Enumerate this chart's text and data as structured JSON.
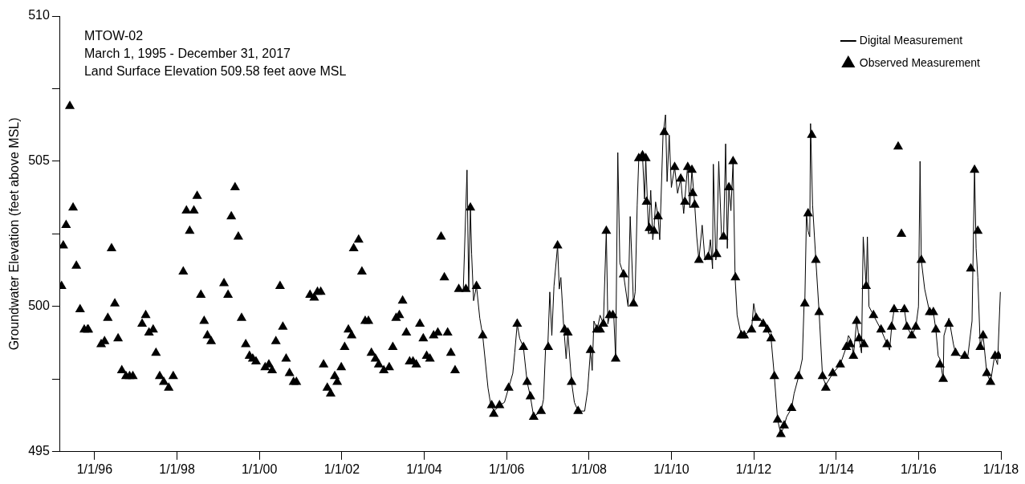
{
  "chart_data": {
    "type": "line",
    "title": "MTOW-02",
    "subtitle": "March 1, 1995 - December 31, 2017",
    "annotations": [
      "Land Surface Elevation 509.58 feet aove MSL"
    ],
    "ylabel": "Groundwater Elevation (feet above MSL)",
    "xlim": [
      "1995-03-01",
      "2018-01-01"
    ],
    "xticks": [
      {
        "value": "1996-01-01",
        "label": "1/1/96"
      },
      {
        "value": "1998-01-01",
        "label": "1/1/98"
      },
      {
        "value": "2000-01-01",
        "label": "1/1/00"
      },
      {
        "value": "2002-01-01",
        "label": "1/1/02"
      },
      {
        "value": "2004-01-01",
        "label": "1/1/04"
      },
      {
        "value": "2006-01-01",
        "label": "1/1/06"
      },
      {
        "value": "2008-01-01",
        "label": "1/1/08"
      },
      {
        "value": "2010-01-01",
        "label": "1/1/10"
      },
      {
        "value": "2012-01-01",
        "label": "1/1/12"
      },
      {
        "value": "2014-01-01",
        "label": "1/1/14"
      },
      {
        "value": "2016-01-01",
        "label": "1/1/16"
      },
      {
        "value": "2018-01-01",
        "label": "1/1/18"
      }
    ],
    "ylim": [
      495,
      510
    ],
    "yticks": [
      495,
      {
        "value": 497.5,
        "label": null
      },
      500,
      {
        "value": 502.5,
        "label": null
      },
      505,
      {
        "value": 507.5,
        "label": null
      },
      510
    ],
    "grid": false,
    "legend": "top right",
    "series": [
      {
        "name": "Digital Measurement",
        "color": "#000000",
        "marker": "none",
        "line_style": "solid",
        "x": [
          "2004-12-13",
          "2005-01-15",
          "2005-01-30",
          "2005-02-14",
          "2005-02-25",
          "2005-03-14",
          "2005-04-09",
          "2005-05-08",
          "2005-06-03",
          "2005-07-20",
          "2005-08-14",
          "2005-09-13",
          "2005-10-30",
          "2005-12-13",
          "2006-01-19",
          "2006-02-25",
          "2006-03-14",
          "2006-04-05",
          "2006-04-27",
          "2006-05-30",
          "2006-07-02",
          "2006-07-31",
          "2006-08-29",
          "2006-11-03",
          "2006-11-24",
          "2006-12-13",
          "2007-01-01",
          "2007-01-19",
          "2007-02-06",
          "2007-02-25",
          "2007-03-29",
          "2007-04-13",
          "2007-04-27",
          "2007-05-19",
          "2007-06-13",
          "2007-06-28",
          "2007-07-31",
          "2007-08-25",
          "2007-09-27",
          "2007-11-24",
          "2007-12-20",
          "2008-01-15",
          "2008-01-30",
          "2008-02-14",
          "2008-03-14",
          "2008-04-09",
          "2008-05-08",
          "2008-06-03",
          "2008-06-17",
          "2008-07-02",
          "2008-08-07",
          "2008-08-25",
          "2008-09-13",
          "2008-10-01",
          "2008-11-03",
          "2008-12-13",
          "2009-01-01",
          "2009-01-30",
          "2009-02-14",
          "2009-03-04",
          "2009-03-18",
          "2009-04-20",
          "2009-05-08",
          "2009-05-19",
          "2009-06-13",
          "2009-07-02",
          "2009-07-20",
          "2009-07-31",
          "2009-08-14",
          "2009-09-05",
          "2009-09-20",
          "2009-10-19",
          "2009-11-10",
          "2009-11-24",
          "2009-12-13",
          "2010-01-01",
          "2010-01-30",
          "2010-02-25",
          "2010-03-25",
          "2010-04-20",
          "2010-05-26",
          "2010-06-13",
          "2010-07-02",
          "2010-07-27",
          "2010-08-14",
          "2010-09-02",
          "2010-10-01",
          "2010-10-26",
          "2010-11-24",
          "2010-12-13",
          "2011-01-01",
          "2011-01-08",
          "2011-01-30",
          "2011-02-06",
          "2011-02-25",
          "2011-03-22",
          "2011-04-09",
          "2011-04-27",
          "2011-05-12",
          "2011-05-26",
          "2011-06-13",
          "2011-07-02",
          "2011-07-20",
          "2011-08-07",
          "2011-09-13",
          "2011-10-08",
          "2011-12-13",
          "2012-01-01",
          "2012-01-23",
          "2012-02-25",
          "2012-03-25",
          "2012-05-01",
          "2012-06-03",
          "2012-07-02",
          "2012-07-31",
          "2012-08-29",
          "2012-09-27",
          "2012-10-19",
          "2012-12-02",
          "2012-12-24",
          "2013-02-03",
          "2013-03-07",
          "2013-03-22",
          "2013-03-29",
          "2013-04-13",
          "2013-04-27",
          "2013-05-12",
          "2013-05-19",
          "2013-06-06",
          "2013-07-05",
          "2013-08-03",
          "2013-09-02",
          "2013-10-01",
          "2013-12-02",
          "2014-02-06",
          "2014-04-01",
          "2014-04-20",
          "2014-05-19",
          "2014-06-03",
          "2014-07-02",
          "2014-07-23",
          "2014-08-14",
          "2014-08-29",
          "2014-09-24",
          "2014-10-05",
          "2014-10-19",
          "2014-11-28",
          "2015-02-03",
          "2015-03-29",
          "2015-04-20",
          "2015-05-08",
          "2015-05-30",
          "2015-07-20",
          "2015-08-29",
          "2015-09-20",
          "2015-11-03",
          "2015-12-09",
          "2016-01-01",
          "2016-01-15",
          "2016-01-26",
          "2016-02-25",
          "2016-04-09",
          "2016-05-12",
          "2016-06-03",
          "2016-06-24",
          "2016-07-09",
          "2016-08-07",
          "2016-08-14",
          "2016-09-27",
          "2016-11-06",
          "2016-11-24",
          "2017-01-01",
          "2017-03-14",
          "2017-04-20",
          "2017-05-12",
          "2017-05-26",
          "2017-06-10",
          "2017-07-02",
          "2017-07-27",
          "2017-08-29",
          "2017-10-01",
          "2017-11-06",
          "2017-12-02",
          "2017-12-27"
        ],
        "values": [
          500.6,
          504.7,
          500.6,
          503.4,
          501.8,
          500.2,
          500.7,
          499.6,
          499.0,
          497.2,
          496.6,
          496.4,
          496.6,
          496.7,
          497.2,
          497.7,
          498.4,
          499.4,
          498.9,
          498.6,
          497.4,
          496.9,
          496.2,
          496.4,
          496.8,
          498.6,
          498.6,
          500.5,
          499.0,
          500.7,
          502.1,
          500.6,
          501.0,
          499.5,
          498.2,
          499.1,
          497.4,
          496.7,
          496.4,
          496.4,
          497.1,
          498.5,
          497.8,
          499.5,
          499.2,
          499.7,
          499.4,
          502.6,
          499.4,
          499.7,
          499.8,
          498.2,
          505.3,
          501.5,
          501.1,
          500.0,
          503.1,
          500.1,
          500.5,
          503.5,
          505.1,
          505.2,
          503.7,
          505.1,
          502.5,
          504.0,
          502.3,
          502.7,
          503.6,
          503.1,
          502.3,
          505.9,
          506.6,
          504.3,
          505.9,
          504.1,
          504.8,
          503.9,
          504.4,
          503.2,
          504.9,
          503.4,
          504.7,
          503.5,
          502.4,
          501.6,
          502.8,
          501.6,
          501.7,
          502.3,
          501.3,
          504.9,
          501.6,
          501.8,
          505.0,
          502.4,
          502.4,
          505.6,
          502.0,
          504.1,
          503.3,
          505.0,
          501.0,
          499.7,
          499.0,
          499.0,
          499.2,
          500.1,
          499.6,
          499.6,
          499.4,
          499.2,
          498.9,
          497.6,
          496.1,
          495.6,
          495.9,
          496.2,
          496.5,
          497.0,
          497.6,
          498.2,
          500.0,
          500.1,
          503.2,
          502.6,
          502.4,
          506.3,
          503.5,
          501.6,
          499.8,
          497.6,
          497.3,
          497.7,
          498.0,
          498.6,
          499.0,
          498.8,
          498.3,
          499.5,
          498.9,
          498.4,
          502.4,
          500.7,
          502.4,
          500.0,
          499.7,
          499.2,
          498.7,
          498.5,
          499.3,
          499.9,
          499.9,
          499.9,
          499.3,
          499.0,
          499.3,
          500.0,
          505.0,
          501.6,
          500.6,
          499.8,
          499.8,
          499.2,
          498.3,
          498.2,
          497.5,
          499.0,
          499.6,
          498.7,
          498.4,
          498.3,
          498.3,
          499.5,
          504.8,
          502.0,
          501.0,
          498.6,
          499.0,
          497.7,
          497.4,
          498.3,
          498.0,
          500.5
        ]
      },
      {
        "name": "Observed Measurement",
        "type": "scatter",
        "color": "#000000",
        "marker": "triangle",
        "x": [
          "1995-03-14",
          "1995-03-29",
          "1995-04-23",
          "1995-05-26",
          "1995-06-24",
          "1995-07-23",
          "1995-08-25",
          "1995-10-01",
          "1995-10-30",
          "1995-11-06",
          "1996-02-28",
          "1996-03-29",
          "1996-04-27",
          "1996-05-30",
          "1996-06-28",
          "1996-07-27",
          "1996-08-29",
          "1996-10-05",
          "1996-11-06",
          "1996-12-05",
          "1997-02-25",
          "1997-03-29",
          "1997-04-27",
          "1997-06-03",
          "1997-06-28",
          "1997-07-31",
          "1997-09-05",
          "1997-10-19",
          "1997-11-28",
          "1998-02-25",
          "1998-03-25",
          "1998-04-23",
          "1998-05-30",
          "1998-06-28",
          "1998-07-31",
          "1998-08-29",
          "1998-09-27",
          "1998-10-30",
          "1999-02-21",
          "1999-03-29",
          "1999-04-27",
          "1999-05-30",
          "1999-06-28",
          "1999-07-27",
          "1999-09-02",
          "1999-10-05",
          "1999-11-03",
          "1999-12-02",
          "2000-02-21",
          "2000-03-25",
          "2000-04-23",
          "2000-05-26",
          "2000-07-02",
          "2000-07-27",
          "2000-08-25",
          "2000-09-24",
          "2000-10-30",
          "2000-11-24",
          "2001-03-25",
          "2001-05-01",
          "2001-05-30",
          "2001-06-28",
          "2001-07-23",
          "2001-08-25",
          "2001-09-24",
          "2001-10-30",
          "2001-11-21",
          "2001-12-27",
          "2002-01-26",
          "2002-02-28",
          "2002-03-29",
          "2002-04-16",
          "2002-05-30",
          "2002-06-28",
          "2002-07-27",
          "2002-08-25",
          "2002-09-20",
          "2002-10-26",
          "2002-11-24",
          "2003-01-08",
          "2003-02-25",
          "2003-03-29",
          "2003-04-27",
          "2003-05-26",
          "2003-06-24",
          "2003-07-27",
          "2003-08-25",
          "2003-09-24",
          "2003-10-23",
          "2003-11-24",
          "2003-12-24",
          "2004-01-23",
          "2004-02-21",
          "2004-03-25",
          "2004-05-01",
          "2004-05-30",
          "2004-06-28",
          "2004-07-27",
          "2004-08-25",
          "2004-10-01",
          "2004-11-03",
          "2005-01-05",
          "2005-02-14",
          "2005-04-09",
          "2005-06-03",
          "2005-08-22",
          "2005-09-09",
          "2005-10-30",
          "2006-01-19",
          "2006-04-05",
          "2006-05-30",
          "2006-07-02",
          "2006-07-31",
          "2006-08-29",
          "2006-11-03",
          "2007-01-05",
          "2007-03-29",
          "2007-05-30",
          "2007-06-28",
          "2007-07-31",
          "2007-09-27",
          "2008-01-15",
          "2008-03-11",
          "2008-04-09",
          "2008-05-08",
          "2008-06-03",
          "2008-07-02",
          "2008-07-31",
          "2008-08-25",
          "2008-11-03",
          "2009-01-30",
          "2009-03-18",
          "2009-04-20",
          "2009-05-19",
          "2009-05-26",
          "2009-06-20",
          "2009-07-31",
          "2009-09-05",
          "2009-10-30",
          "2010-01-30",
          "2010-03-25",
          "2010-05-01",
          "2010-05-26",
          "2010-07-02",
          "2010-07-09",
          "2010-07-27",
          "2010-09-02",
          "2010-11-24",
          "2011-02-06",
          "2011-04-09",
          "2011-05-26",
          "2011-07-02",
          "2011-07-23",
          "2011-09-13",
          "2011-10-08",
          "2011-12-13",
          "2012-01-23",
          "2012-03-25",
          "2012-05-01",
          "2012-06-03",
          "2012-07-02",
          "2012-07-31",
          "2012-08-29",
          "2012-09-27",
          "2012-12-02",
          "2013-02-03",
          "2013-03-29",
          "2013-04-27",
          "2013-05-30",
          "2013-07-05",
          "2013-08-03",
          "2013-09-02",
          "2013-10-01",
          "2013-12-02",
          "2014-02-06",
          "2014-04-01",
          "2014-05-05",
          "2014-06-03",
          "2014-07-02",
          "2014-07-23",
          "2014-09-05",
          "2014-09-24",
          "2014-11-28",
          "2015-02-03",
          "2015-03-29",
          "2015-05-08",
          "2015-05-30",
          "2015-07-05",
          "2015-08-03",
          "2015-08-29",
          "2015-09-20",
          "2015-11-03",
          "2015-12-09",
          "2016-01-26",
          "2016-04-09",
          "2016-05-12",
          "2016-06-03",
          "2016-07-09",
          "2016-08-07",
          "2016-09-27",
          "2016-11-24",
          "2017-02-14",
          "2017-04-09",
          "2017-05-12",
          "2017-06-10",
          "2017-07-02",
          "2017-07-27",
          "2017-08-29",
          "2017-10-01",
          "2017-11-10",
          "2017-12-09"
        ],
        "values": [
          500.7,
          502.1,
          502.8,
          506.9,
          503.4,
          501.4,
          499.9,
          499.2,
          499.2,
          499.2,
          498.7,
          498.8,
          499.6,
          502.0,
          500.1,
          498.9,
          497.8,
          497.6,
          497.6,
          497.6,
          499.4,
          499.7,
          499.1,
          499.2,
          498.4,
          497.6,
          497.4,
          497.2,
          497.6,
          501.2,
          503.3,
          502.6,
          503.3,
          503.8,
          500.4,
          499.5,
          499.0,
          498.8,
          500.8,
          500.4,
          503.1,
          504.1,
          502.4,
          499.6,
          498.7,
          498.3,
          498.2,
          498.1,
          497.9,
          498.0,
          497.8,
          498.8,
          500.7,
          499.3,
          498.2,
          497.7,
          497.4,
          497.4,
          500.4,
          500.3,
          500.5,
          500.5,
          498.0,
          497.2,
          497.0,
          497.6,
          497.4,
          497.9,
          498.6,
          499.2,
          499.0,
          502.0,
          502.3,
          501.2,
          499.5,
          499.5,
          498.4,
          498.2,
          498.0,
          497.8,
          497.9,
          498.6,
          499.6,
          499.7,
          500.2,
          499.1,
          498.1,
          498.1,
          498.0,
          499.4,
          498.9,
          498.3,
          498.2,
          499.0,
          499.1,
          502.4,
          501.0,
          499.1,
          498.4,
          497.8,
          500.6,
          500.6,
          503.4,
          500.7,
          499.0,
          496.6,
          496.3,
          496.6,
          497.2,
          499.4,
          498.6,
          497.4,
          496.9,
          496.2,
          496.4,
          498.6,
          502.1,
          499.2,
          499.1,
          497.4,
          496.4,
          498.5,
          499.2,
          499.2,
          499.4,
          502.6,
          499.7,
          499.7,
          498.2,
          501.1,
          500.1,
          505.1,
          505.2,
          505.1,
          503.6,
          502.7,
          502.6,
          503.1,
          506.0,
          504.8,
          504.4,
          503.6,
          504.8,
          504.7,
          503.9,
          503.5,
          501.6,
          501.7,
          501.8,
          502.4,
          504.1,
          505.0,
          501.0,
          499.0,
          499.0,
          499.2,
          499.6,
          499.4,
          499.2,
          498.9,
          497.6,
          496.1,
          495.6,
          495.9,
          496.5,
          497.6,
          500.1,
          503.2,
          505.9,
          501.6,
          499.8,
          497.6,
          497.2,
          497.7,
          498.0,
          498.6,
          498.7,
          498.3,
          499.5,
          498.9,
          498.7,
          500.7,
          499.7,
          499.2,
          498.7,
          499.3,
          499.9,
          505.5,
          502.5,
          499.9,
          499.3,
          499.0,
          499.3,
          501.6,
          499.8,
          499.8,
          499.2,
          498.0,
          497.5,
          499.4,
          498.4,
          498.3,
          501.3,
          504.7,
          502.6,
          498.6,
          499.0,
          497.7,
          497.4,
          498.3,
          498.3
        ]
      }
    ]
  }
}
